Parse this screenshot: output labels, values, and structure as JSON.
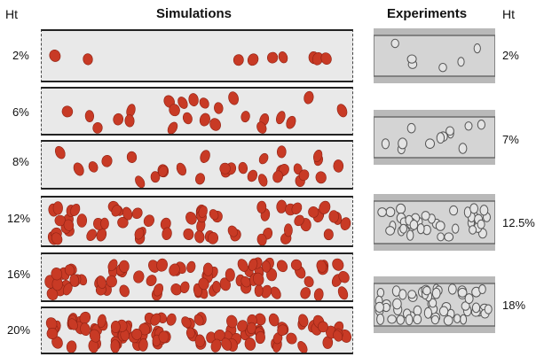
{
  "headers": {
    "ht_left": "Ht",
    "simulations": "Simulations",
    "experiments": "Experiments",
    "ht_right": "Ht"
  },
  "rows": [
    {
      "sim_label": "2%",
      "exp_label": "2%"
    },
    {
      "sim_label": "6%",
      "exp_label": "7%"
    },
    {
      "sim_label": "8%",
      "exp_label": ""
    },
    {
      "sim_label": "12%",
      "exp_label": "12.5%"
    },
    {
      "sim_label": "16%",
      "exp_label": ""
    },
    {
      "sim_label": "20%",
      "exp_label": "18%"
    }
  ],
  "colors": {
    "cell": "#c83a25",
    "cell_dark": "#8e2214",
    "channel_bg": "#e9e9e9",
    "exp_bg": "#b9b9b9",
    "exp_channel": "#d4d4d4"
  }
}
